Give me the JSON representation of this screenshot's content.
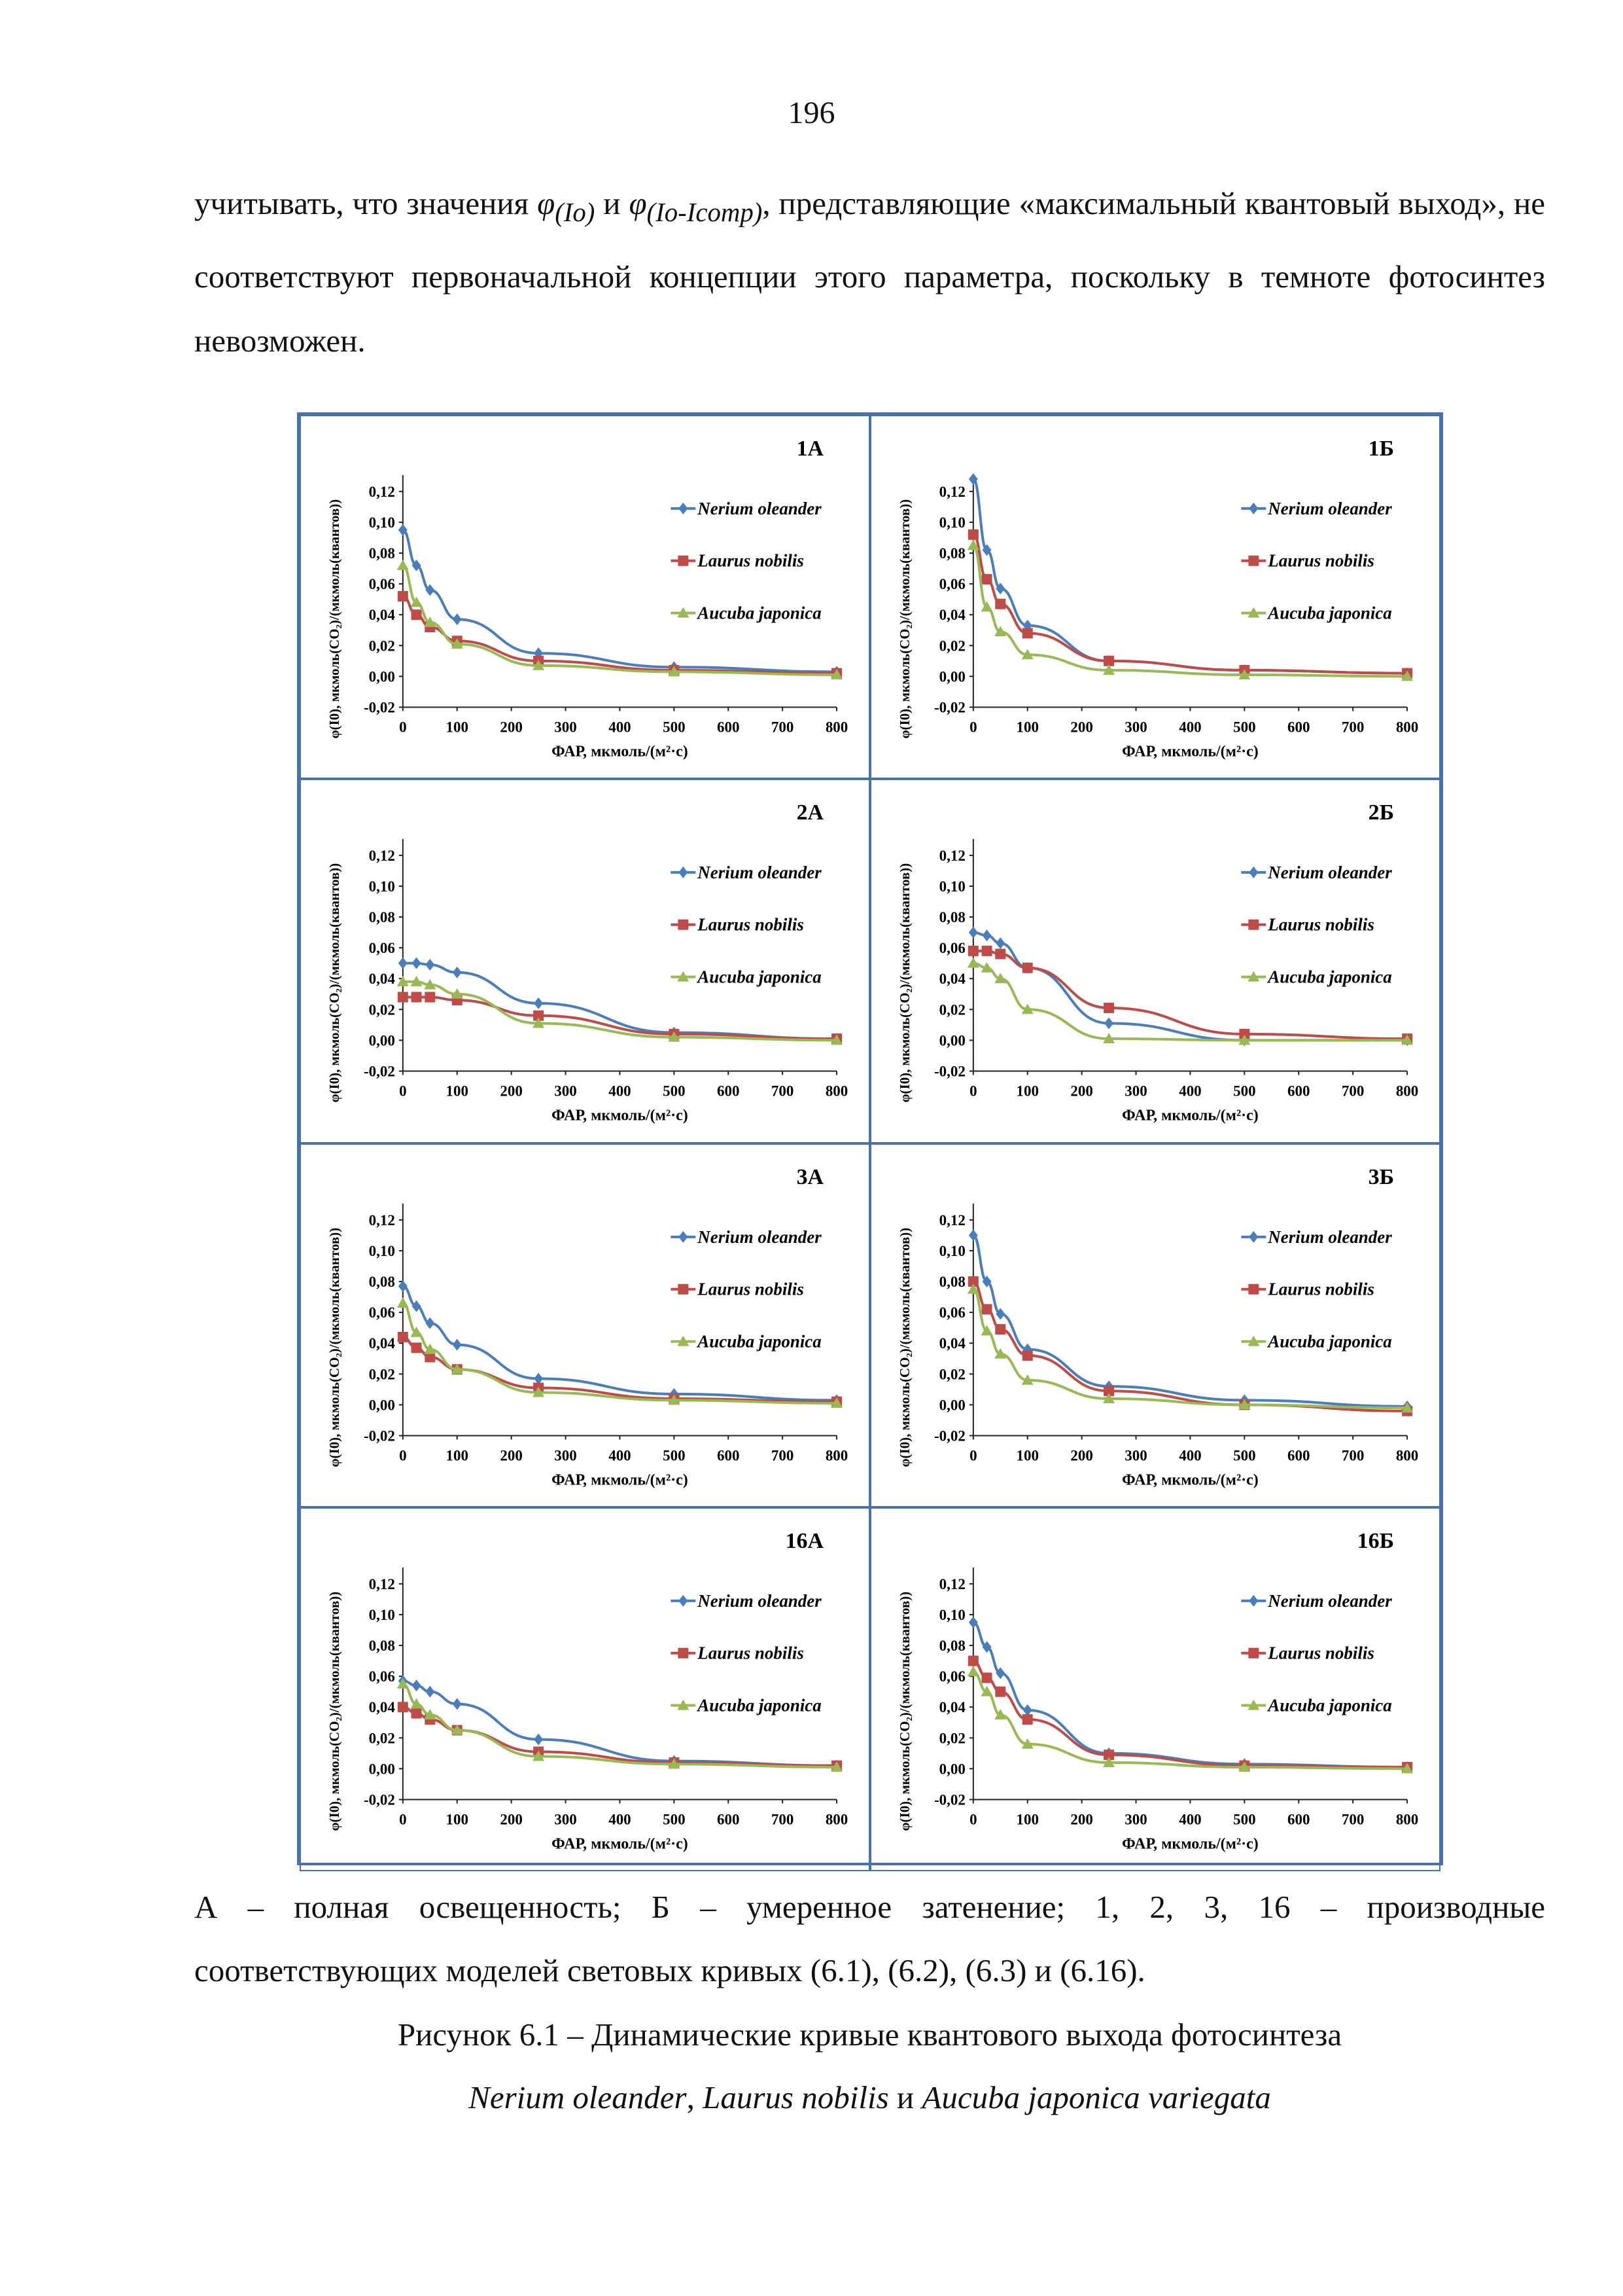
{
  "page_number": "196",
  "paragraph": {
    "t1": "учитывать, что значения ",
    "phi1": "φ",
    "sub1": "(Io)",
    "t2": " и ",
    "phi2": "φ",
    "sub2": "(Io-Icomp)",
    "t3": ", представляющие «максимальный квантовый выход», не соответствуют первоначальной концепции этого параметра, поскольку в темноте фотосинтез невозможен."
  },
  "caption": {
    "line1": "А – полная освещенность; Б – умеренное затенение; 1, 2, 3, 16 – производные",
    "line2": "соответствующих моделей световых кривых (6.1), (6.2), (6.3) и (6.16).",
    "line3": "Рисунок 6.1 – Динамические кривые квантового выхода фотосинтеза",
    "species1": "Nerium oleander",
    "sep1": ", ",
    "species2": "Laurus nobilis",
    "sep2": " и ",
    "species3": "Aucuba japonica variegata"
  },
  "colors": {
    "nerium": "#4a7ebb",
    "laurus": "#be4b48",
    "aucuba": "#98b954",
    "border": "#4a72a8"
  },
  "chart_data": [
    {
      "type": "line",
      "title": "1А",
      "xlabel": "ФАР, мкмоль/(м²·с)",
      "ylabel": "φ(I0), мкмоль(CO₂)/(мкмоль(квантов))",
      "xlim": [
        0,
        800
      ],
      "ylim": [
        -0.02,
        0.12
      ],
      "xticks": [
        "0",
        "100",
        "200",
        "300",
        "400",
        "500",
        "600",
        "700",
        "800"
      ],
      "yticks": [
        "-0,02",
        "0,00",
        "0,02",
        "0,04",
        "0,06",
        "0,08",
        "0,10",
        "0,12"
      ],
      "x": [
        0,
        25,
        50,
        100,
        250,
        500,
        800
      ],
      "legend": "right",
      "series": [
        {
          "name": "Nerium oleander",
          "values": [
            0.095,
            0.072,
            0.056,
            0.037,
            0.015,
            0.006,
            0.003
          ]
        },
        {
          "name": "Laurus nobilis",
          "values": [
            0.052,
            0.04,
            0.032,
            0.023,
            0.01,
            0.004,
            0.002
          ]
        },
        {
          "name": "Aucuba japonica",
          "values": [
            0.072,
            0.048,
            0.035,
            0.021,
            0.007,
            0.003,
            0.001
          ]
        }
      ]
    },
    {
      "type": "line",
      "title": "1Б",
      "xlabel": "ФАР, мкмоль/(м²·с)",
      "ylabel": "φ(I0), мкмоль(CO₂)/(мкмоль(квантов))",
      "xlim": [
        0,
        800
      ],
      "ylim": [
        -0.02,
        0.12
      ],
      "xticks": [
        "0",
        "100",
        "200",
        "300",
        "400",
        "500",
        "600",
        "700",
        "800"
      ],
      "yticks": [
        "-0,02",
        "0,00",
        "0,02",
        "0,04",
        "0,06",
        "0,08",
        "0,10",
        "0,12"
      ],
      "x": [
        0,
        25,
        50,
        100,
        250,
        500,
        800
      ],
      "legend": "right",
      "series": [
        {
          "name": "Nerium oleander",
          "values": [
            0.128,
            0.082,
            0.057,
            0.033,
            0.01,
            0.004,
            0.002
          ]
        },
        {
          "name": "Laurus nobilis",
          "values": [
            0.092,
            0.063,
            0.047,
            0.028,
            0.01,
            0.004,
            0.002
          ]
        },
        {
          "name": "Aucuba japonica",
          "values": [
            0.085,
            0.045,
            0.029,
            0.014,
            0.004,
            0.001,
            0.0
          ]
        }
      ]
    },
    {
      "type": "line",
      "title": "2А",
      "xlabel": "ФАР, мкмоль/(м²·с)",
      "ylabel": "φ(I0), мкмоль(CO₂)/(мкмоль(квантов))",
      "xlim": [
        0,
        800
      ],
      "ylim": [
        -0.02,
        0.12
      ],
      "xticks": [
        "0",
        "100",
        "200",
        "300",
        "400",
        "500",
        "600",
        "700",
        "800"
      ],
      "yticks": [
        "-0,02",
        "0,00",
        "0,02",
        "0,04",
        "0,06",
        "0,08",
        "0,10",
        "0,12"
      ],
      "x": [
        0,
        25,
        50,
        100,
        250,
        500,
        800
      ],
      "legend": "right",
      "series": [
        {
          "name": "Nerium oleander",
          "values": [
            0.05,
            0.05,
            0.049,
            0.044,
            0.024,
            0.005,
            0.001
          ]
        },
        {
          "name": "Laurus nobilis",
          "values": [
            0.028,
            0.028,
            0.028,
            0.026,
            0.016,
            0.004,
            0.001
          ]
        },
        {
          "name": "Aucuba japonica",
          "values": [
            0.038,
            0.038,
            0.036,
            0.03,
            0.011,
            0.002,
            0.0
          ]
        }
      ]
    },
    {
      "type": "line",
      "title": "2Б",
      "xlabel": "ФАР, мкмоль/(м²·с)",
      "ylabel": "φ(I0), мкмоль(CO₂)/(мкмоль(квантов))",
      "xlim": [
        0,
        800
      ],
      "ylim": [
        -0.02,
        0.12
      ],
      "xticks": [
        "0",
        "100",
        "200",
        "300",
        "400",
        "500",
        "600",
        "700",
        "800"
      ],
      "yticks": [
        "-0,02",
        "0,00",
        "0,02",
        "0,04",
        "0,06",
        "0,08",
        "0,10",
        "0,12"
      ],
      "x": [
        0,
        25,
        50,
        100,
        250,
        500,
        800
      ],
      "legend": "right",
      "series": [
        {
          "name": "Nerium oleander",
          "values": [
            0.07,
            0.068,
            0.063,
            0.047,
            0.011,
            0.0,
            0.0
          ]
        },
        {
          "name": "Laurus nobilis",
          "values": [
            0.058,
            0.058,
            0.056,
            0.047,
            0.021,
            0.004,
            0.001
          ]
        },
        {
          "name": "Aucuba japonica",
          "values": [
            0.05,
            0.047,
            0.04,
            0.02,
            0.001,
            0.0,
            0.0
          ]
        }
      ]
    },
    {
      "type": "line",
      "title": "3А",
      "xlabel": "ФАР, мкмоль/(м²·с)",
      "ylabel": "φ(I0), мкмоль(CO₂)/(мкмоль(квантов))",
      "xlim": [
        0,
        800
      ],
      "ylim": [
        -0.02,
        0.12
      ],
      "xticks": [
        "0",
        "100",
        "200",
        "300",
        "400",
        "500",
        "600",
        "700",
        "800"
      ],
      "yticks": [
        "-0,02",
        "0,00",
        "0,02",
        "0,04",
        "0,06",
        "0,08",
        "0,10",
        "0,12"
      ],
      "x": [
        0,
        25,
        50,
        100,
        250,
        500,
        800
      ],
      "legend": "right",
      "series": [
        {
          "name": "Nerium oleander",
          "values": [
            0.077,
            0.064,
            0.053,
            0.039,
            0.017,
            0.007,
            0.003
          ]
        },
        {
          "name": "Laurus nobilis",
          "values": [
            0.044,
            0.037,
            0.031,
            0.023,
            0.011,
            0.004,
            0.002
          ]
        },
        {
          "name": "Aucuba japonica",
          "values": [
            0.066,
            0.047,
            0.036,
            0.023,
            0.008,
            0.003,
            0.001
          ]
        }
      ]
    },
    {
      "type": "line",
      "title": "3Б",
      "xlabel": "ФАР, мкмоль/(м²·с)",
      "ylabel": "φ(I0), мкмоль(CO₂)/(мкмоль(квантов))",
      "xlim": [
        0,
        800
      ],
      "ylim": [
        -0.02,
        0.12
      ],
      "xticks": [
        "0",
        "100",
        "200",
        "300",
        "400",
        "500",
        "600",
        "700",
        "800"
      ],
      "yticks": [
        "-0,02",
        "0,00",
        "0,02",
        "0,04",
        "0,06",
        "0,08",
        "0,10",
        "0,12"
      ],
      "x": [
        0,
        25,
        50,
        100,
        250,
        500,
        800
      ],
      "legend": "right",
      "series": [
        {
          "name": "Nerium oleander",
          "values": [
            0.11,
            0.08,
            0.059,
            0.036,
            0.012,
            0.003,
            -0.001
          ]
        },
        {
          "name": "Laurus nobilis",
          "values": [
            0.08,
            0.062,
            0.049,
            0.032,
            0.009,
            0.0,
            -0.004
          ]
        },
        {
          "name": "Aucuba japonica",
          "values": [
            0.075,
            0.048,
            0.033,
            0.016,
            0.004,
            0.0,
            -0.002
          ]
        }
      ]
    },
    {
      "type": "line",
      "title": "16А",
      "xlabel": "ФАР, мкмоль/(м²·с)",
      "ylabel": "φ(I0), мкмоль(CO₂)/(мкмоль(квантов))",
      "xlim": [
        0,
        800
      ],
      "ylim": [
        -0.02,
        0.12
      ],
      "xticks": [
        "0",
        "100",
        "200",
        "300",
        "400",
        "500",
        "600",
        "700",
        "800"
      ],
      "yticks": [
        "-0,02",
        "0,00",
        "0,02",
        "0,04",
        "0,06",
        "0,08",
        "0,10",
        "0,12"
      ],
      "x": [
        0,
        25,
        50,
        100,
        250,
        500,
        800
      ],
      "legend": "right",
      "series": [
        {
          "name": "Nerium oleander",
          "values": [
            0.057,
            0.054,
            0.05,
            0.042,
            0.019,
            0.005,
            0.002
          ]
        },
        {
          "name": "Laurus nobilis",
          "values": [
            0.04,
            0.036,
            0.032,
            0.025,
            0.011,
            0.004,
            0.002
          ]
        },
        {
          "name": "Aucuba japonica",
          "values": [
            0.055,
            0.042,
            0.035,
            0.025,
            0.008,
            0.003,
            0.001
          ]
        }
      ]
    },
    {
      "type": "line",
      "title": "16Б",
      "xlabel": "ФАР, мкмоль/(м²·с)",
      "ylabel": "φ(I0), мкмоль(CO₂)/(мкмоль(квантов))",
      "xlim": [
        0,
        800
      ],
      "ylim": [
        -0.02,
        0.12
      ],
      "xticks": [
        "0",
        "100",
        "200",
        "300",
        "400",
        "500",
        "600",
        "700",
        "800"
      ],
      "yticks": [
        "-0,02",
        "0,00",
        "0,02",
        "0,04",
        "0,06",
        "0,08",
        "0,10",
        "0,12"
      ],
      "x": [
        0,
        25,
        50,
        100,
        250,
        500,
        800
      ],
      "legend": "right",
      "series": [
        {
          "name": "Nerium oleander",
          "values": [
            0.095,
            0.079,
            0.062,
            0.038,
            0.01,
            0.003,
            0.001
          ]
        },
        {
          "name": "Laurus nobilis",
          "values": [
            0.07,
            0.059,
            0.05,
            0.032,
            0.009,
            0.002,
            0.001
          ]
        },
        {
          "name": "Aucuba japonica",
          "values": [
            0.063,
            0.05,
            0.035,
            0.016,
            0.004,
            0.001,
            0.0
          ]
        }
      ]
    }
  ]
}
